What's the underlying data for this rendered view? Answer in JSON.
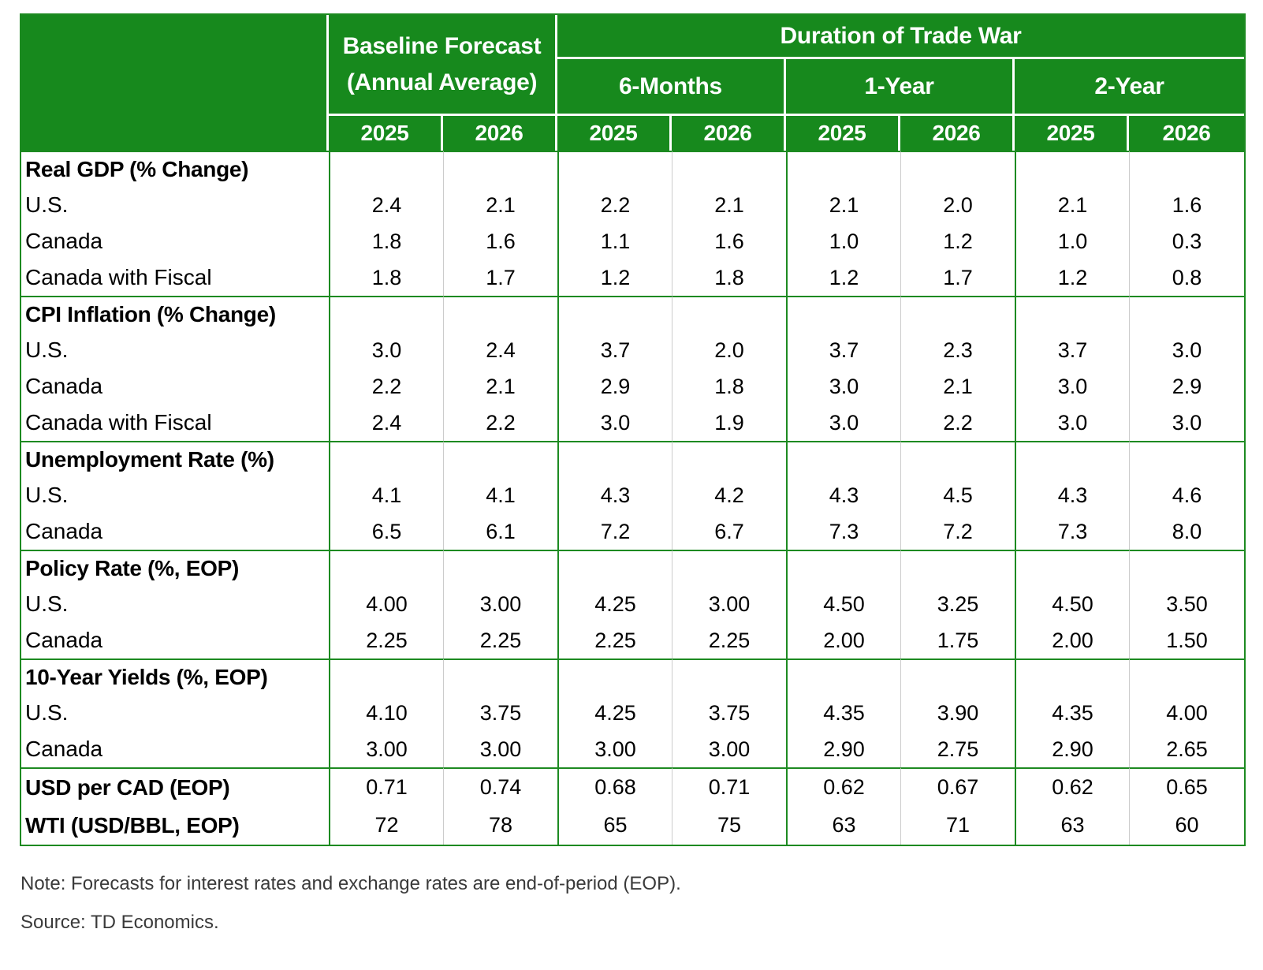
{
  "chart_data": {
    "type": "table",
    "title": "Duration of Trade War",
    "col_groups": [
      {
        "key": "baseline",
        "label": "Baseline Forecast",
        "sublabel": "(Annual Average)",
        "years": [
          "2025",
          "2026"
        ]
      },
      {
        "key": "6-months",
        "label": "6-Months",
        "years": [
          "2025",
          "2026"
        ]
      },
      {
        "key": "1-year",
        "label": "1-Year",
        "years": [
          "2025",
          "2026"
        ]
      },
      {
        "key": "2-year",
        "label": "2-Year",
        "years": [
          "2025",
          "2026"
        ]
      }
    ],
    "columns": [
      "Baseline 2025",
      "Baseline 2026",
      "6-Months 2025",
      "6-Months 2026",
      "1-Year 2025",
      "1-Year 2026",
      "2-Year 2025",
      "2-Year 2026"
    ],
    "sections": [
      {
        "header": "Real GDP (% Change)",
        "rows": [
          {
            "label": "U.S.",
            "values": [
              "2.4",
              "2.1",
              "2.2",
              "2.1",
              "2.1",
              "2.0",
              "2.1",
              "1.6"
            ]
          },
          {
            "label": "Canada",
            "values": [
              "1.8",
              "1.6",
              "1.1",
              "1.6",
              "1.0",
              "1.2",
              "1.0",
              "0.3"
            ]
          },
          {
            "label": "Canada with Fiscal",
            "values": [
              "1.8",
              "1.7",
              "1.2",
              "1.8",
              "1.2",
              "1.7",
              "1.2",
              "0.8"
            ]
          }
        ]
      },
      {
        "header": "CPI Inflation (% Change)",
        "rows": [
          {
            "label": "U.S.",
            "values": [
              "3.0",
              "2.4",
              "3.7",
              "2.0",
              "3.7",
              "2.3",
              "3.7",
              "3.0"
            ]
          },
          {
            "label": "Canada",
            "values": [
              "2.2",
              "2.1",
              "2.9",
              "1.8",
              "3.0",
              "2.1",
              "3.0",
              "2.9"
            ]
          },
          {
            "label": "Canada with Fiscal",
            "values": [
              "2.4",
              "2.2",
              "3.0",
              "1.9",
              "3.0",
              "2.2",
              "3.0",
              "3.0"
            ]
          }
        ]
      },
      {
        "header": "Unemployment Rate (%)",
        "rows": [
          {
            "label": "U.S.",
            "values": [
              "4.1",
              "4.1",
              "4.3",
              "4.2",
              "4.3",
              "4.5",
              "4.3",
              "4.6"
            ]
          },
          {
            "label": "Canada",
            "values": [
              "6.5",
              "6.1",
              "7.2",
              "6.7",
              "7.3",
              "7.2",
              "7.3",
              "8.0"
            ]
          }
        ]
      },
      {
        "header": "Policy Rate (%, EOP)",
        "rows": [
          {
            "label": "U.S.",
            "values": [
              "4.00",
              "3.00",
              "4.25",
              "3.00",
              "4.50",
              "3.25",
              "4.50",
              "3.50"
            ]
          },
          {
            "label": "Canada",
            "values": [
              "2.25",
              "2.25",
              "2.25",
              "2.25",
              "2.00",
              "1.75",
              "2.00",
              "1.50"
            ]
          }
        ]
      },
      {
        "header": "10-Year Yields (%, EOP)",
        "rows": [
          {
            "label": "U.S.",
            "values": [
              "4.10",
              "3.75",
              "4.25",
              "3.75",
              "4.35",
              "3.90",
              "4.35",
              "4.00"
            ]
          },
          {
            "label": "Canada",
            "values": [
              "3.00",
              "3.00",
              "3.00",
              "3.00",
              "2.90",
              "2.75",
              "2.90",
              "2.65"
            ]
          }
        ]
      },
      {
        "header": null,
        "rows": [
          {
            "label": "USD per CAD (EOP)",
            "bold": true,
            "values": [
              "0.71",
              "0.74",
              "0.68",
              "0.71",
              "0.62",
              "0.67",
              "0.62",
              "0.65"
            ]
          },
          {
            "label": "WTI (USD/BBL, EOP)",
            "bold": true,
            "values": [
              "72",
              "78",
              "65",
              "75",
              "63",
              "71",
              "63",
              "60"
            ]
          }
        ]
      }
    ]
  },
  "notes": {
    "note": "Note: Forecasts for interest rates and exchange rates are end-of-period (EOP).",
    "source": "Source: TD Economics."
  },
  "colors": {
    "header_green": "#17891D",
    "border_green": "#1d8a21",
    "inner_separator_gray": "#cccccc",
    "note_text": "#3a3a3a"
  }
}
